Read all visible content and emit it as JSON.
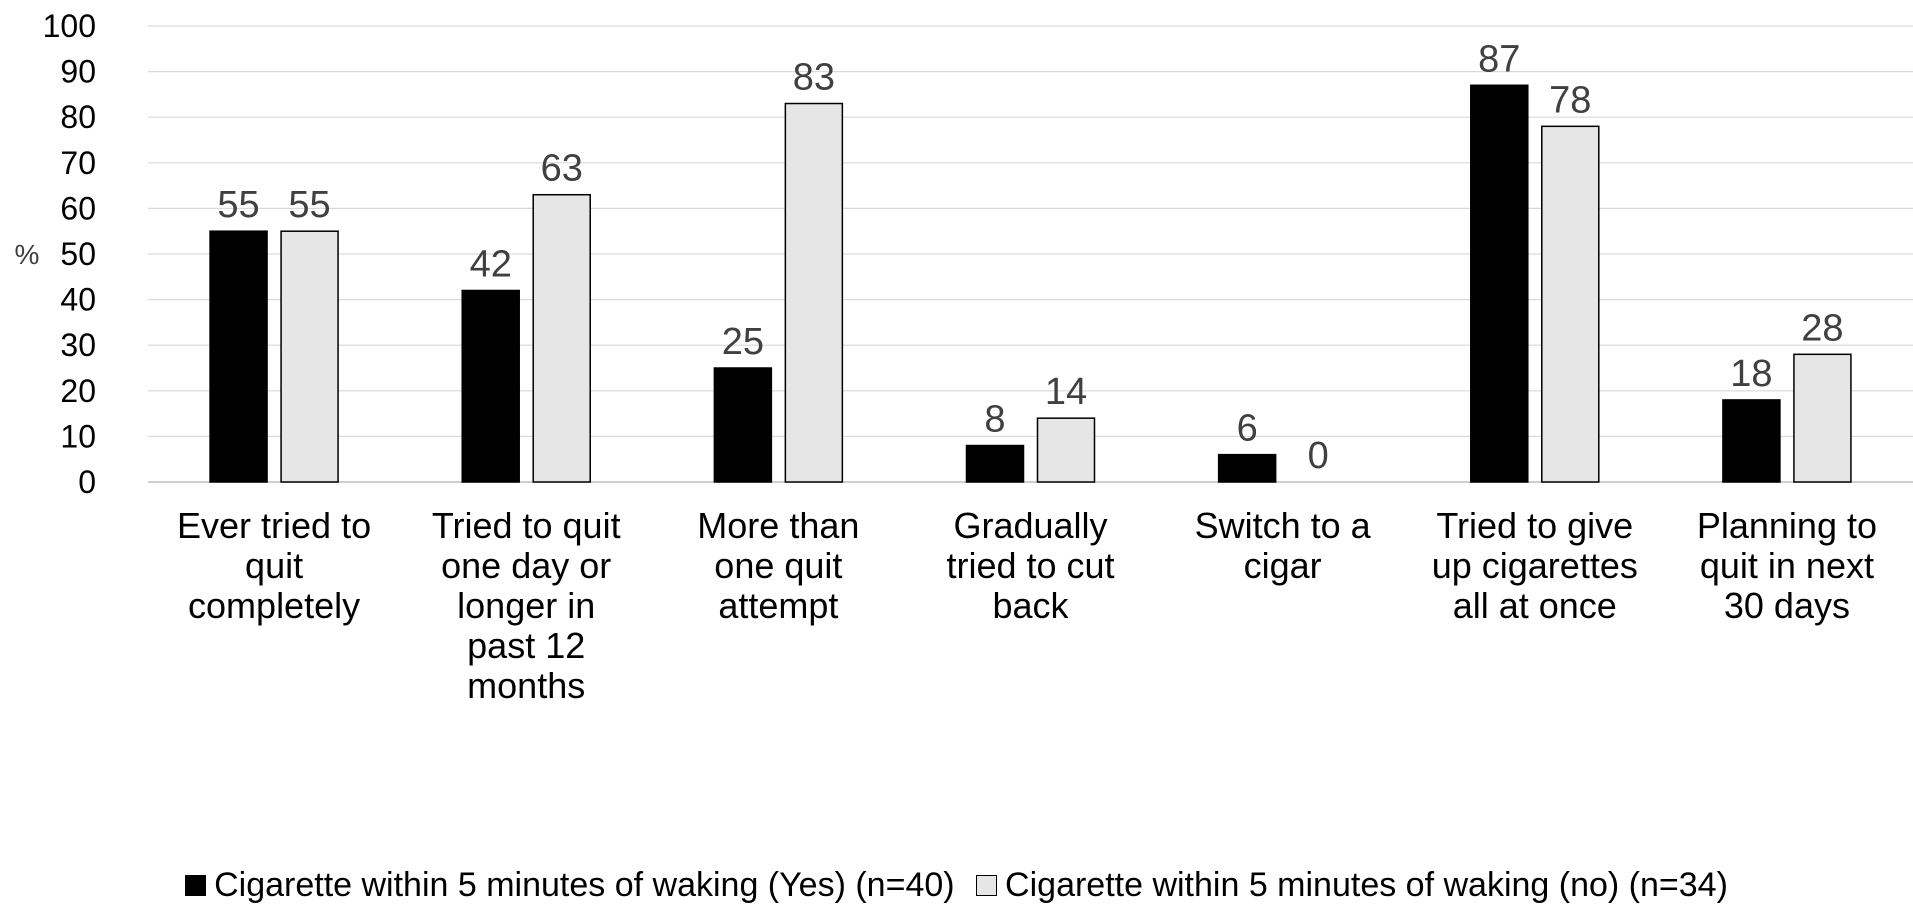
{
  "chart_data": {
    "type": "bar",
    "ylabel": "%",
    "ylim": [
      0,
      100
    ],
    "yticks": [
      0,
      10,
      20,
      30,
      40,
      50,
      60,
      70,
      80,
      90,
      100
    ],
    "grid": true,
    "legend_position": "bottom",
    "categories": [
      [
        "Ever tried to",
        "quit",
        "completely"
      ],
      [
        "Tried to quit",
        "one day or",
        "longer in",
        "past 12",
        "months"
      ],
      [
        "More than",
        "one quit",
        "attempt"
      ],
      [
        "Gradually",
        "tried to cut",
        "back"
      ],
      [
        "Switch to a",
        "cigar"
      ],
      [
        "Tried to give",
        "up cigarettes",
        "all at once"
      ],
      [
        "Planning to",
        "quit in next",
        "30 days"
      ]
    ],
    "series": [
      {
        "name": "Cigarette within 5 minutes of waking (Yes) (n=40)",
        "color": "#000000",
        "values": [
          55,
          42,
          25,
          8,
          6,
          87,
          18
        ]
      },
      {
        "name": "Cigarette within 5 minutes of waking (no) (n=34)",
        "color": "#e7e6e6",
        "values": [
          55,
          63,
          83,
          14,
          0,
          78,
          28
        ]
      }
    ]
  }
}
